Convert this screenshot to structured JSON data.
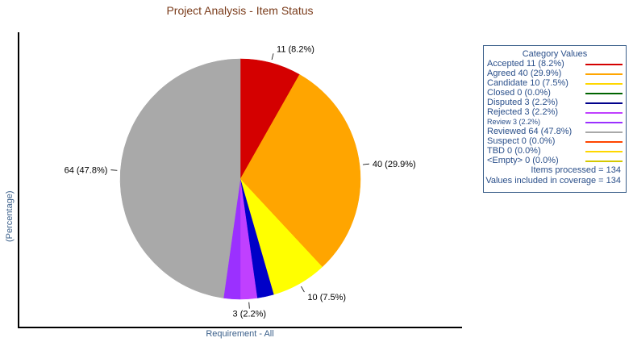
{
  "chart_data": {
    "type": "pie",
    "title": "Project Analysis - Item Status",
    "xlabel": "Requirement - All",
    "ylabel": "(Percentage)",
    "slices": [
      {
        "label": "Accepted",
        "value": 11,
        "percent": 8.2,
        "color": "#d40000",
        "data_label": "11 (8.2%)"
      },
      {
        "label": "Agreed",
        "value": 40,
        "percent": 29.9,
        "color": "#ffa500",
        "data_label": "40 (29.9%)"
      },
      {
        "label": "Candidate",
        "value": 10,
        "percent": 7.5,
        "color": "#ffff00",
        "data_label": "10 (7.5%)"
      },
      {
        "label": "Closed",
        "value": 0,
        "percent": 0.0,
        "color": "#006400",
        "data_label": ""
      },
      {
        "label": "Disputed",
        "value": 3,
        "percent": 2.2,
        "color": "#0000c8",
        "data_label": ""
      },
      {
        "label": "Rejected",
        "value": 3,
        "percent": 2.2,
        "color": "#c040ff",
        "data_label": "3 (2.2%)"
      },
      {
        "label": "Review",
        "value": 3,
        "percent": 2.2,
        "color": "#9b30ff",
        "data_label": ""
      },
      {
        "label": "Reviewed",
        "value": 64,
        "percent": 47.8,
        "color": "#a9a9a9",
        "data_label": "64 (47.8%)"
      },
      {
        "label": "Suspect",
        "value": 0,
        "percent": 0.0,
        "color": "#ff4500",
        "data_label": ""
      },
      {
        "label": "TBD",
        "value": 0,
        "percent": 0.0,
        "color": "#ffd700",
        "data_label": ""
      },
      {
        "label": "<Empty>",
        "value": 0,
        "percent": 0.0,
        "color": "#d4c800",
        "data_label": ""
      }
    ],
    "legend": {
      "title": "Category Values",
      "placement": "right",
      "entries": [
        {
          "text": "Accepted 11 (8.2%)",
          "color": "#d40000"
        },
        {
          "text": "Agreed 40 (29.9%)",
          "color": "#ffa500"
        },
        {
          "text": "Candidate 10 (7.5%)",
          "color": "#ffd700"
        },
        {
          "text": "Closed 0 (0.0%)",
          "color": "#006400"
        },
        {
          "text": "Disputed 3 (2.2%)",
          "color": "#00008b"
        },
        {
          "text": "Rejected 3 (2.2%)",
          "color": "#c040ff"
        },
        {
          "text": "Review 3 (2.2%)",
          "color": "#9b30ff",
          "small": true
        },
        {
          "text": "Reviewed 64 (47.8%)",
          "color": "#a9a9a9"
        },
        {
          "text": "Suspect 0 (0.0%)",
          "color": "#ff4500"
        },
        {
          "text": "TBD 0 (0.0%)",
          "color": "#ffd700"
        },
        {
          "text": "<Empty> 0 (0.0%)",
          "color": "#d4c800"
        }
      ],
      "items_processed": "Items processed = 134",
      "values_included": "Values included in coverage = 134"
    }
  }
}
